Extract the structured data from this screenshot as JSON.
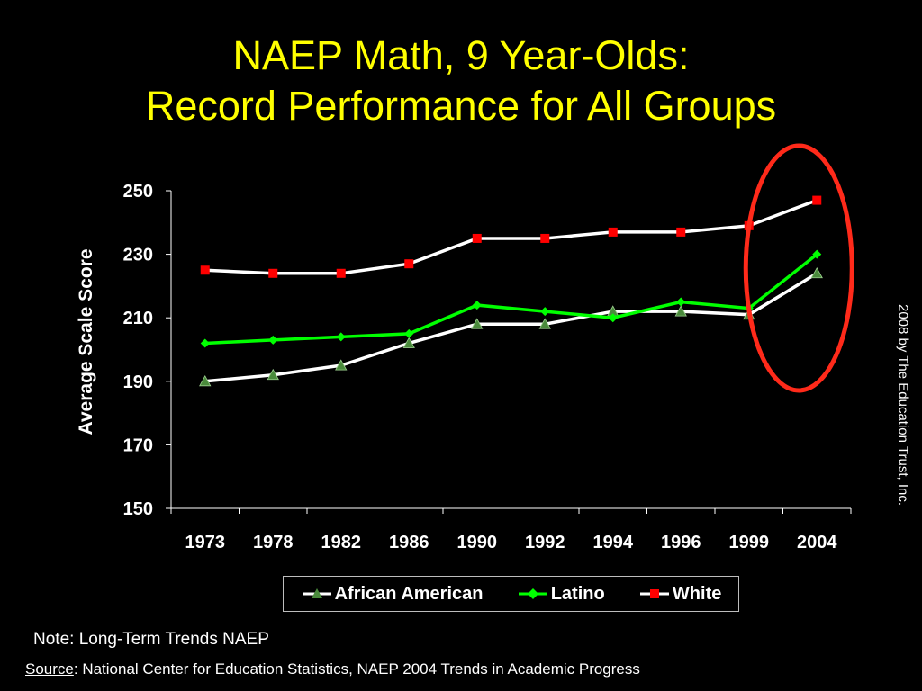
{
  "slide": {
    "title_line1": "NAEP Math, 9 Year-Olds:",
    "title_line2": "Record Performance for All Groups",
    "copyright": "2008 by The Education Trust, Inc.",
    "note": "Note: Long-Term Trends NAEP",
    "source_label": "Source",
    "source_text": ": National Center for Education Statistics, NAEP 2004 Trends in Academic Progress"
  },
  "colors": {
    "background": "#000000",
    "title": "#ffff00",
    "african_american": "#ffffff",
    "african_american_marker": "#4a8a3c",
    "latino": "#00ff00",
    "white": "#ffffff",
    "white_marker": "#ff0000",
    "highlight_ellipse": "#ff2a1a"
  },
  "chart_data": {
    "type": "line",
    "title": "",
    "xlabel": "",
    "ylabel": "Average Scale Score",
    "categories": [
      "1973",
      "1978",
      "1982",
      "1986",
      "1990",
      "1992",
      "1994",
      "1996",
      "1999",
      "2004"
    ],
    "ylim": [
      150,
      250
    ],
    "yticks": [
      150,
      170,
      190,
      210,
      230,
      250
    ],
    "grid": false,
    "legend_position": "bottom",
    "series": [
      {
        "name": "African American",
        "marker": "triangle",
        "values": [
          190,
          192,
          195,
          202,
          208,
          208,
          212,
          212,
          211,
          224
        ]
      },
      {
        "name": "Latino",
        "marker": "diamond",
        "values": [
          202,
          203,
          204,
          205,
          214,
          212,
          210,
          215,
          213,
          230
        ]
      },
      {
        "name": "White",
        "marker": "square",
        "values": [
          225,
          224,
          224,
          227,
          235,
          235,
          237,
          237,
          239,
          247
        ]
      }
    ],
    "annotation": "red ellipse highlighting 2004 values"
  }
}
